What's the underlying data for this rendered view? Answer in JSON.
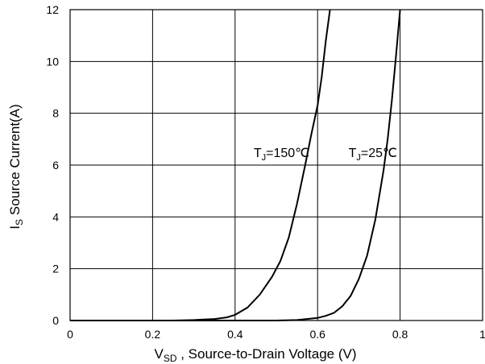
{
  "chart_data": {
    "type": "line",
    "title": "",
    "xlabel": {
      "main": "V",
      "sub": "SD",
      "rest": " , Source-to-Drain Voltage (V)"
    },
    "ylabel": {
      "main": "I",
      "sub": "S",
      "rest": " Source Current(A)"
    },
    "xlim": [
      0,
      1
    ],
    "ylim": [
      0,
      12
    ],
    "xticks": [
      0,
      0.2,
      0.4,
      0.6,
      0.8,
      1
    ],
    "xtick_labels": [
      "0",
      "0.2",
      "0.4",
      "0.6",
      "0.8",
      "1"
    ],
    "yticks": [
      0,
      2,
      4,
      6,
      8,
      10,
      12
    ],
    "ytick_labels": [
      "0",
      "2",
      "4",
      "6",
      "8",
      "10",
      "12"
    ],
    "grid": true,
    "series": [
      {
        "x": [
          0,
          0.25,
          0.3,
          0.35,
          0.38,
          0.4,
          0.43,
          0.46,
          0.49,
          0.51,
          0.53,
          0.55,
          0.57,
          0.585,
          0.6,
          0.61,
          0.62,
          0.63
        ],
        "y": [
          0,
          0,
          0.02,
          0.06,
          0.12,
          0.22,
          0.5,
          1.0,
          1.7,
          2.3,
          3.2,
          4.5,
          6.0,
          7.2,
          8.3,
          9.4,
          10.8,
          12
        ]
      },
      {
        "x": [
          0,
          0.5,
          0.55,
          0.6,
          0.62,
          0.64,
          0.66,
          0.68,
          0.7,
          0.72,
          0.74,
          0.76,
          0.77,
          0.78,
          0.79,
          0.8
        ],
        "y": [
          0,
          0,
          0.02,
          0.1,
          0.18,
          0.3,
          0.55,
          0.95,
          1.6,
          2.5,
          3.9,
          5.8,
          7.0,
          8.5,
          10.2,
          12
        ]
      }
    ],
    "annotations": [
      {
        "main": "T",
        "sub": "J",
        "rest": "=150℃",
        "x": 0.445,
        "y": 6.5
      },
      {
        "main": "T",
        "sub": "J",
        "rest": "=25℃",
        "x": 0.675,
        "y": 6.5
      }
    ]
  }
}
